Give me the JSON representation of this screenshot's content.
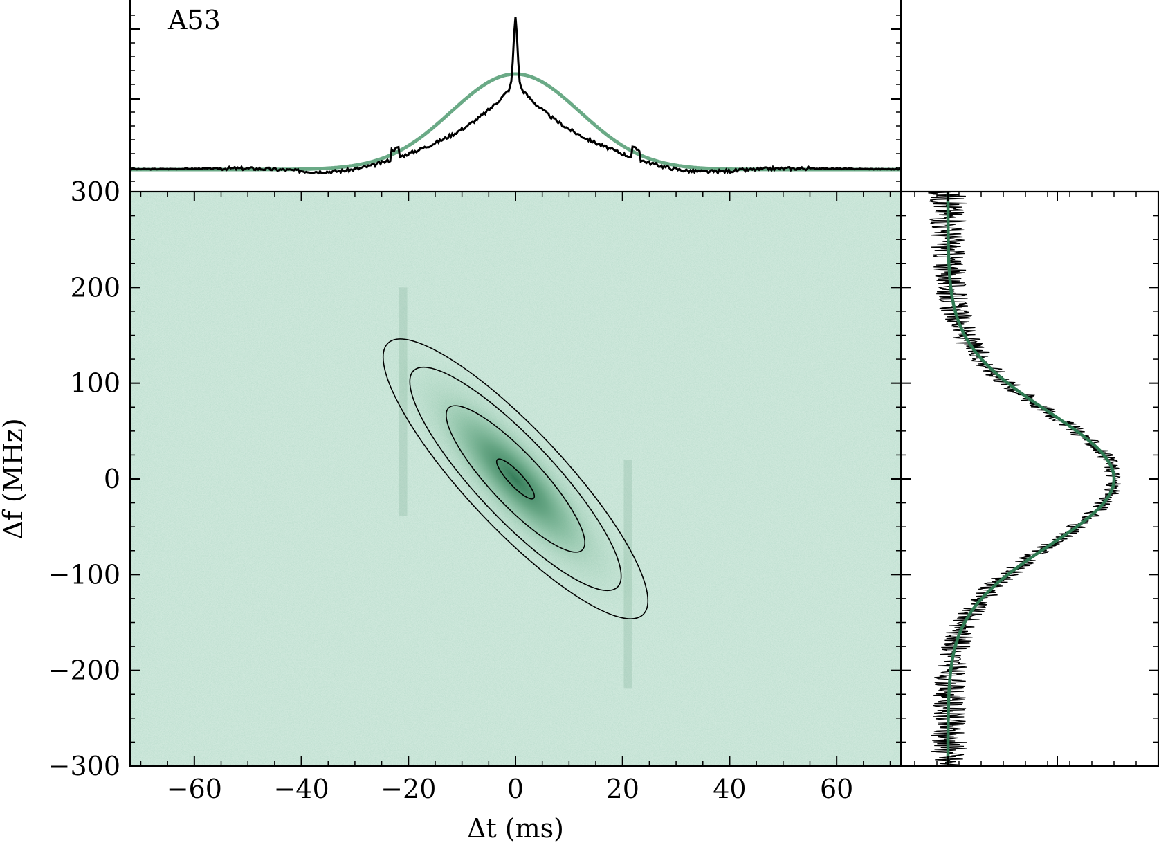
{
  "chart_data": {
    "type": "heatmap",
    "label": "A53",
    "xlabel": "Δt (ms)",
    "ylabel": "Δf (MHz)",
    "xlim": [
      -72,
      72
    ],
    "ylim": [
      -300,
      300
    ],
    "x_ticks": [
      -60,
      -40,
      -20,
      0,
      20,
      40,
      60
    ],
    "y_ticks": [
      -300,
      -200,
      -100,
      0,
      100,
      200,
      300
    ],
    "x_tick_labels": [
      "−60",
      "−40",
      "−20",
      "0",
      "20",
      "40",
      "60"
    ],
    "y_tick_labels": [
      "−300",
      "−200",
      "−100",
      "0",
      "100",
      "200",
      "300"
    ],
    "colors": {
      "map_background": "#cfe8dc",
      "map_peak": "#1f6b45",
      "fit_top": "#6aaa86",
      "fit_right": "#2f7a52",
      "data_line": "#000000",
      "contour": "#000000"
    },
    "acf_2d": {
      "center": [
        0,
        0
      ],
      "sigma_t_ms": 11,
      "sigma_f_mhz": 65,
      "correlation": -0.87,
      "contour_levels_relative": [
        0.95,
        0.5,
        0.2,
        0.08
      ]
    },
    "top_panel": {
      "description_series": [
        "time ACF",
        "gaussian fit"
      ],
      "fit_amplitude": 1.0,
      "fit_sigma_ms": 12,
      "spike_height": 1.6,
      "baseline": 0
    },
    "right_panel": {
      "fit_amplitude": 1.0,
      "fit_sigma_mhz": 70,
      "baseline": 0
    }
  }
}
